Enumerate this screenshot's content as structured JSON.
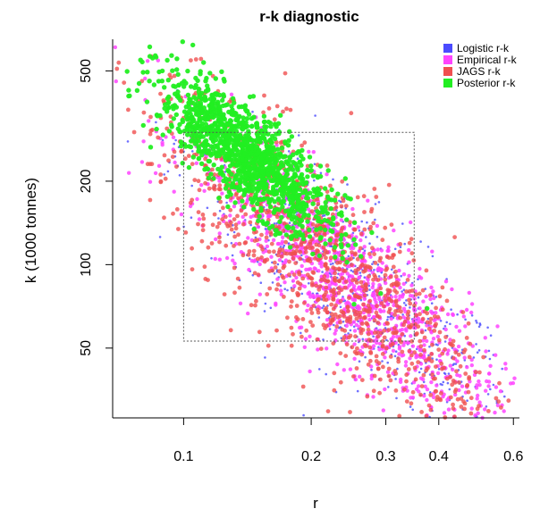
{
  "chart_data": {
    "type": "scatter",
    "title": "r-k diagnostic",
    "xlabel": "r",
    "ylabel": "k (1000 tonnes)",
    "x_scale": "log",
    "y_scale": "log",
    "xlim": [
      0.068,
      0.62
    ],
    "ylim": [
      28,
      650
    ],
    "x_ticks": [
      {
        "value": 0.1,
        "label": "0.1"
      },
      {
        "value": 0.2,
        "label": "0.2"
      },
      {
        "value": 0.3,
        "label": "0.3"
      },
      {
        "value": 0.4,
        "label": "0.4"
      },
      {
        "value": 0.6,
        "label": "0.6"
      }
    ],
    "y_ticks": [
      {
        "value": 50,
        "label": "50"
      },
      {
        "value": 100,
        "label": "100"
      },
      {
        "value": 200,
        "label": "200"
      },
      {
        "value": 500,
        "label": "500"
      }
    ],
    "prior_range_box": {
      "r": [
        0.1,
        0.35
      ],
      "k": [
        53,
        300
      ]
    },
    "legend_position": "top-right",
    "grid": false,
    "series": [
      {
        "name": "Logistic r-k",
        "color": "#4b4bff",
        "cloud": {
          "r_center": 0.25,
          "k_center": 85,
          "r_spread_log": 0.2,
          "k_spread_log": 0.29,
          "correlation": -0.85
        }
      },
      {
        "name": "Empirical r-k",
        "color": "#ff44ff",
        "cloud": {
          "r_center": 0.24,
          "k_center": 88,
          "r_spread_log": 0.18,
          "k_spread_log": 0.26,
          "correlation": -0.85
        }
      },
      {
        "name": "JAGS r-k",
        "color": "#f05050",
        "cloud": {
          "r_center": 0.21,
          "k_center": 105,
          "r_spread_log": 0.2,
          "k_spread_log": 0.3,
          "correlation": -0.82
        }
      },
      {
        "name": "Posterior r-k",
        "color": "#22ee22",
        "cloud": {
          "r_center": 0.14,
          "k_center": 250,
          "r_spread_log": 0.1,
          "k_spread_log": 0.14,
          "correlation": -0.8
        }
      }
    ]
  }
}
